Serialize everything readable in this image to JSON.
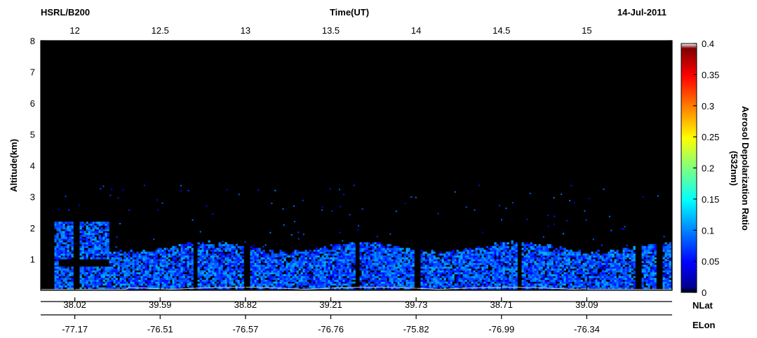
{
  "chart_data": {
    "type": "heatmap",
    "instrument": "HSRL/B200",
    "top_axis_label": "Time(UT)",
    "date": "14-Jul-2011",
    "ylabel": "Altitude(km)",
    "ylim": [
      0,
      8
    ],
    "y_ticks": [
      "1",
      "2",
      "3",
      "4",
      "5",
      "6",
      "7",
      "8"
    ],
    "time_range": [
      11.8,
      15.5
    ],
    "time_ticks": [
      {
        "value": 12,
        "label": "12"
      },
      {
        "value": 12.5,
        "label": "12.5"
      },
      {
        "value": 13,
        "label": "13"
      },
      {
        "value": 13.5,
        "label": "13.5"
      },
      {
        "value": 14,
        "label": "14"
      },
      {
        "value": 14.5,
        "label": "14.5"
      },
      {
        "value": 15,
        "label": "15"
      }
    ],
    "nlat_label": "NLat",
    "nlat_ticks": [
      "38.02",
      "39.59",
      "38.82",
      "39.21",
      "39.73",
      "38.71",
      "39.09"
    ],
    "elon_label": "ELon",
    "elon_ticks": [
      "-77.17",
      "-76.51",
      "-76.57",
      "-76.76",
      "-75.82",
      "-76.99",
      "-76.34"
    ],
    "colorbar": {
      "label_line1": "Aerosol Depolarization Ratio",
      "label_line2": "(532nm)",
      "range": [
        0,
        0.4
      ],
      "ticks": [
        "0",
        "0.05",
        "0.1",
        "0.15",
        "0.2",
        "0.25",
        "0.3",
        "0.35",
        "0.4"
      ],
      "colormap": "jet"
    },
    "features": {
      "aerosol_layer_top_km": 1.3,
      "elevated_layer_km": [
        1.0,
        2.15
      ],
      "elevated_layer_time": [
        11.8,
        12.2
      ],
      "typical_depolarization": 0.08,
      "data_gaps_time": [
        12.0,
        12.7,
        13.0,
        13.65,
        14.0,
        14.6,
        15.3,
        15.42
      ]
    }
  }
}
